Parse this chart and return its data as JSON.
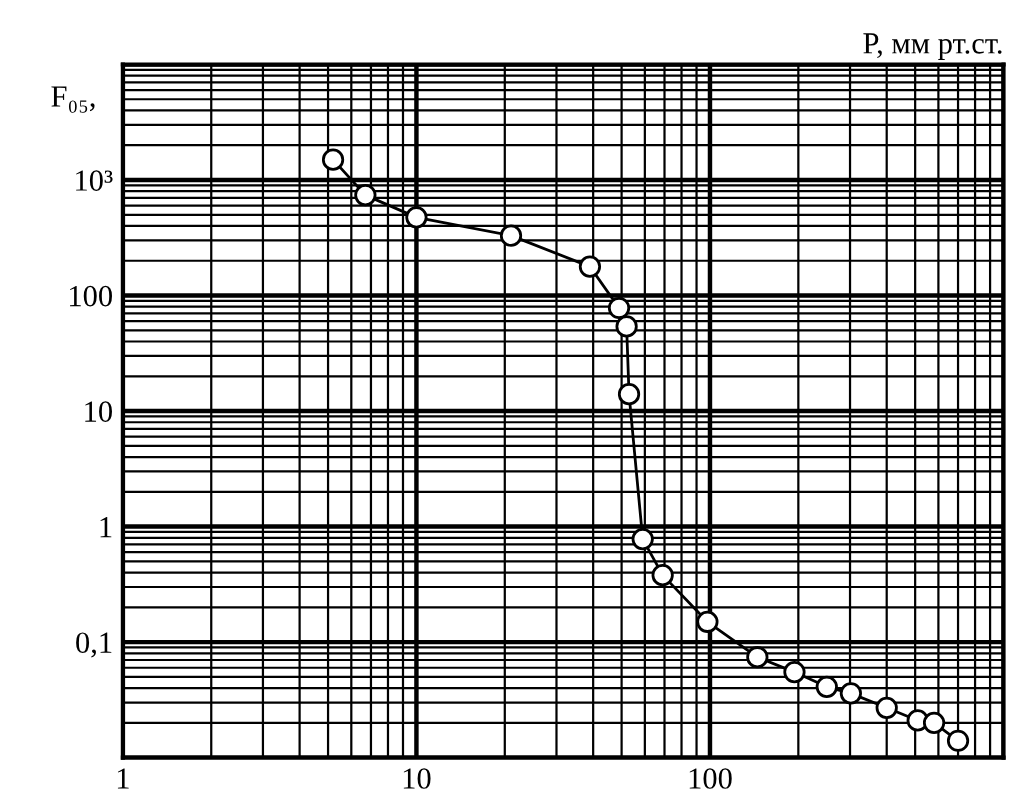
{
  "chart_data": {
    "type": "line",
    "xlabel": "P, мм рт.ст.",
    "ylabel": "F₀₅,",
    "log": "xy",
    "grid": true,
    "marker": "circle",
    "line_style": "solid",
    "xlim": [
      1,
      1000
    ],
    "ylim": [
      0.01,
      10000
    ],
    "xticks": [
      1,
      10,
      100,
      {
        "value": 1000,
        "label": null
      }
    ],
    "yticks": [
      {
        "value": 0.01,
        "label": null
      },
      {
        "value": 0.1,
        "label": "0,1"
      },
      1,
      10,
      100,
      {
        "value": 1000,
        "label": "10³"
      },
      {
        "value": 10000,
        "label": null
      }
    ],
    "series": [
      {
        "color": "#000000",
        "x": [
          5.2,
          6.7,
          10,
          21,
          39,
          49,
          52,
          53,
          59,
          69,
          98,
          145,
          194,
          250,
          302,
          400,
          510,
          580,
          700
        ],
        "values": [
          1500,
          740,
          475,
          330,
          178,
          78,
          54,
          14,
          0.78,
          0.38,
          0.15,
          0.074,
          0.055,
          0.041,
          0.036,
          0.027,
          0.021,
          0.02,
          0.014
        ]
      }
    ]
  }
}
